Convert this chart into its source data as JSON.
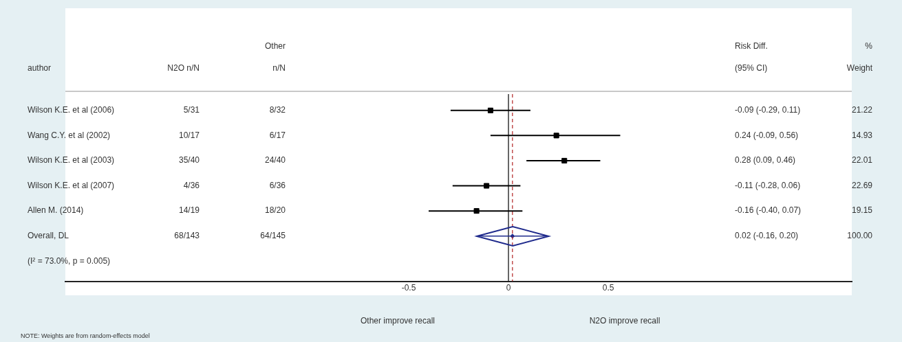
{
  "chart_data": {
    "type": "scatter",
    "orientation": "horizontal",
    "categories": [
      "Wilson K.E. et al (2006)",
      "Wang C.Y. et al (2002)",
      "Wilson K.E. et al (2003)",
      "Wilson K.E. et al (2007)",
      "Allen M. (2014)",
      "Overall, DL"
    ],
    "series": [
      {
        "type": "scatter",
        "marker": "square",
        "color": "#000000",
        "values": [
          -0.09,
          0.24,
          0.28,
          -0.11,
          -0.16,
          null
        ],
        "errors": [
          [
            -0.29,
            0.11
          ],
          [
            -0.09,
            0.56
          ],
          [
            0.09,
            0.46
          ],
          [
            -0.28,
            0.06
          ],
          [
            -0.4,
            0.07
          ],
          null
        ]
      },
      {
        "type": "scatter",
        "marker": "diamond",
        "color": "#1f2a8c",
        "values": [
          null,
          null,
          null,
          null,
          null,
          0.02
        ],
        "errors": [
          null,
          null,
          null,
          null,
          null,
          [
            -0.16,
            0.2
          ]
        ]
      }
    ],
    "xlim": [
      -2.22,
      1.72
    ],
    "xticks": [
      -0.5,
      0,
      0.5
    ],
    "ref_lines": [
      {
        "axis": "x",
        "value": 0,
        "color": "#000000",
        "line_style": "solid"
      },
      {
        "axis": "x",
        "value": 0.02,
        "color": "#b22222",
        "line_style": "dashed"
      }
    ],
    "annotations": [
      "author",
      "N2O n/N",
      "Other",
      "n/N",
      "Risk Diff.",
      "(95% CI)",
      "%",
      "Weight",
      "(I² = 73.0%, p = 0.005)",
      "Other improve recall",
      "N2O improve recall",
      "NOTE: Weights are from random-effects model",
      "5/31",
      "8/32",
      "-0.09 (-0.29, 0.11)",
      "21.22",
      "10/17",
      "6/17",
      "0.24 (-0.09, 0.56)",
      "14.93",
      "35/40",
      "24/40",
      "0.28 (0.09, 0.46)",
      "22.01",
      "4/36",
      "6/36",
      "-0.11 (-0.28, 0.06)",
      "22.69",
      "14/19",
      "18/20",
      "-0.16 (-0.40, 0.07)",
      "19.15",
      "68/143",
      "64/145",
      "0.02 (-0.16, 0.20)",
      "100.00"
    ]
  }
}
